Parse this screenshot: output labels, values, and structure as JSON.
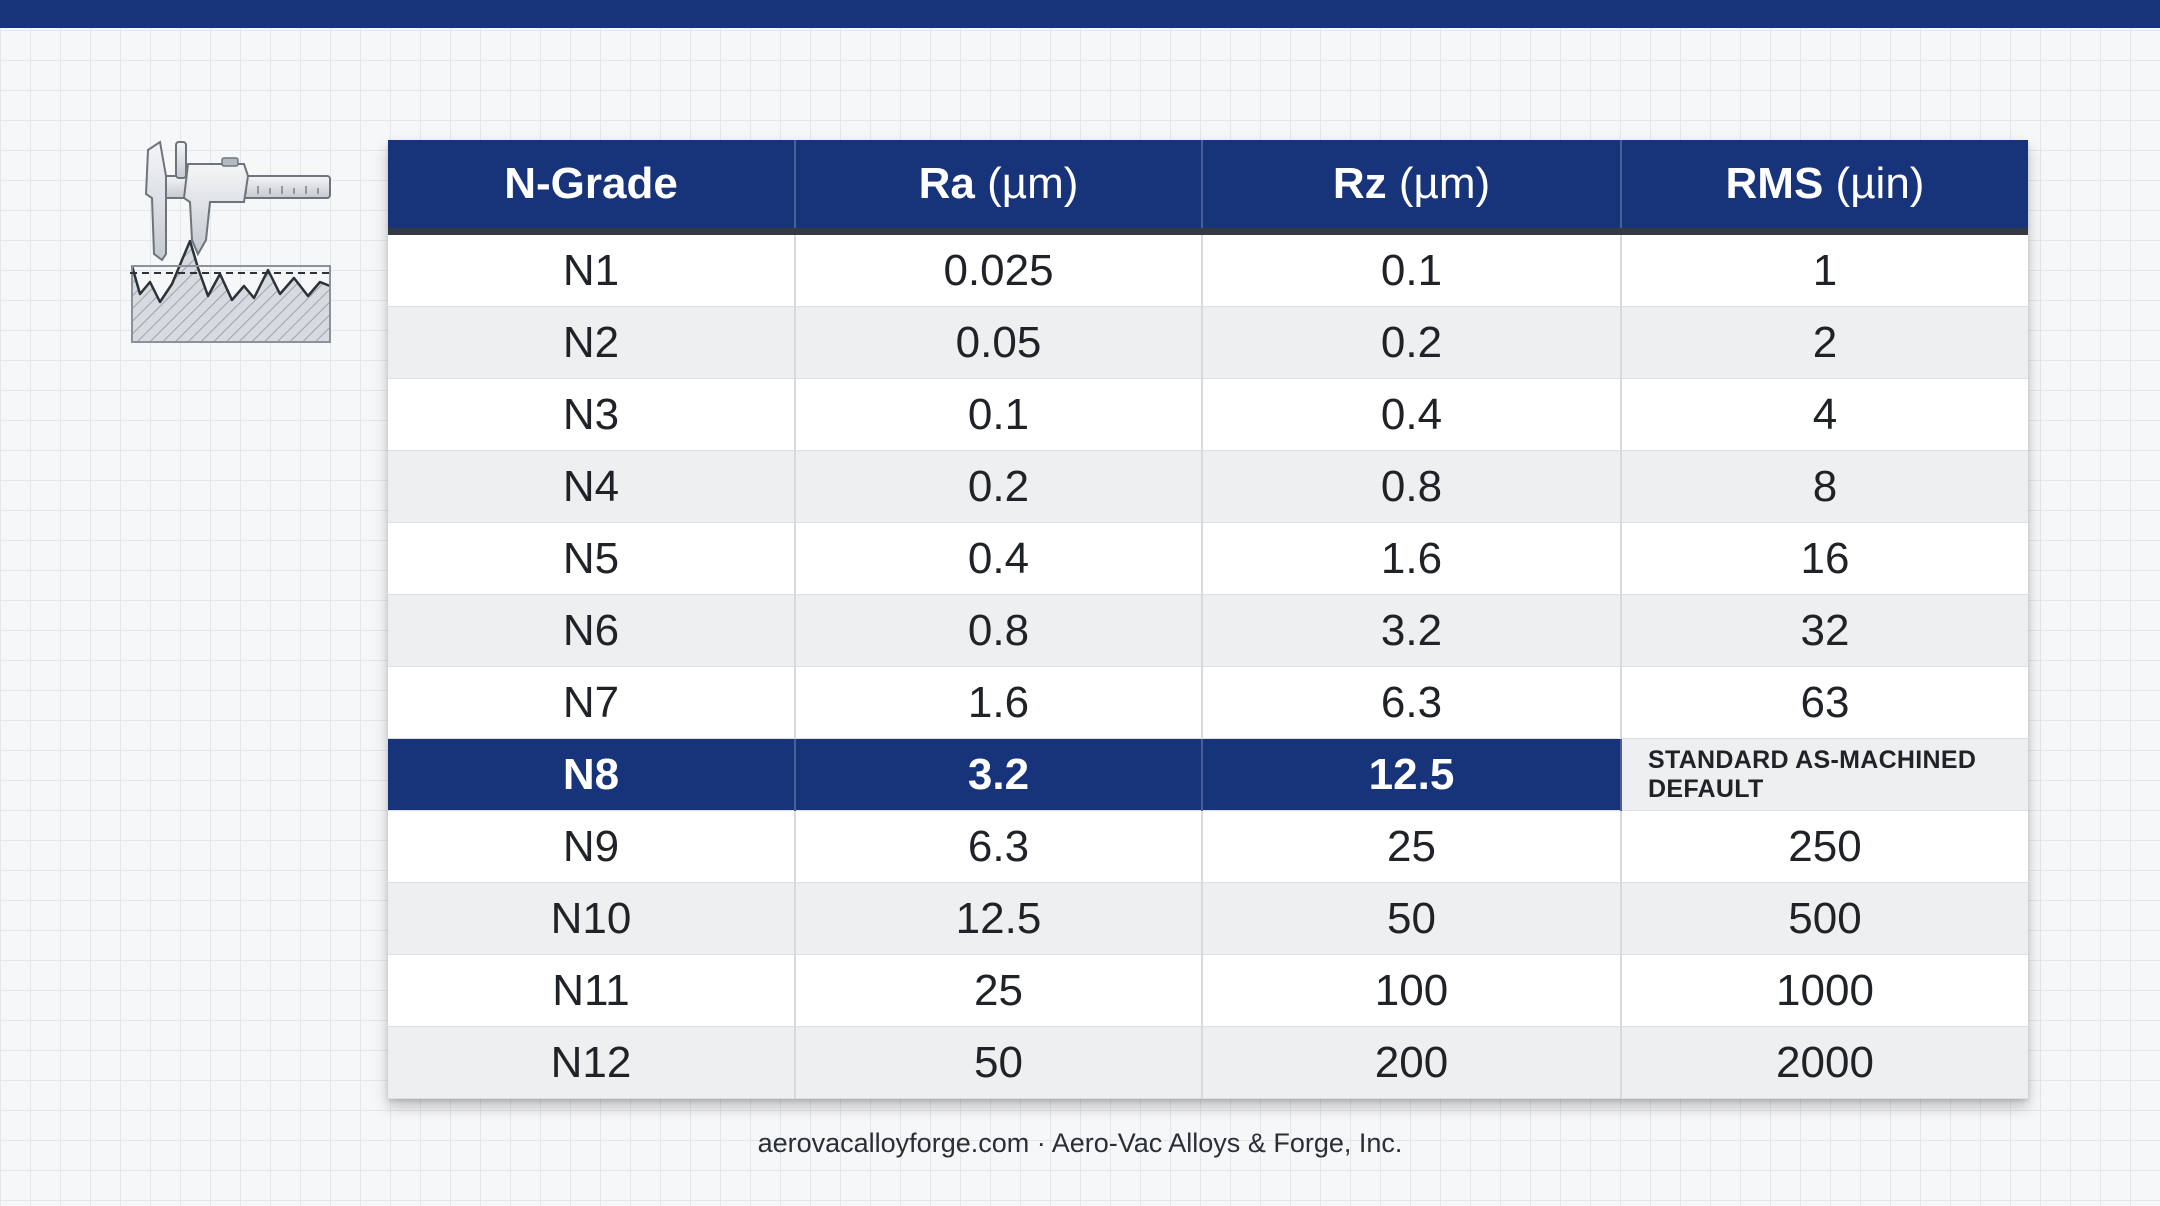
{
  "table": {
    "headers": [
      {
        "bold": "N-Grade",
        "unit": ""
      },
      {
        "bold": "Ra",
        "unit": " (µm)"
      },
      {
        "bold": "Rz",
        "unit": " (µm)"
      },
      {
        "bold": "RMS",
        "unit": " (µin)"
      }
    ],
    "rows": [
      [
        "N1",
        "0.025",
        "0.1",
        "1"
      ],
      [
        "N2",
        "0.05",
        "0.2",
        "2"
      ],
      [
        "N3",
        "0.1",
        "0.4",
        "4"
      ],
      [
        "N4",
        "0.2",
        "0.8",
        "8"
      ],
      [
        "N5",
        "0.4",
        "1.6",
        "16"
      ],
      [
        "N6",
        "0.8",
        "3.2",
        "32"
      ],
      [
        "N7",
        "1.6",
        "6.3",
        "63"
      ],
      [
        "N8",
        "3.2",
        "12.5",
        "STANDARD AS-MACHINED DEFAULT"
      ],
      [
        "N9",
        "6.3",
        "25",
        "250"
      ],
      [
        "N10",
        "12.5",
        "50",
        "500"
      ],
      [
        "N11",
        "25",
        "100",
        "1000"
      ],
      [
        "N12",
        "50",
        "200",
        "2000"
      ]
    ],
    "highlight_row": 7
  },
  "footer": {
    "text": "aerovacalloyforge.com · Aero-Vac Alloys & Forge, Inc."
  },
  "colors": {
    "navy": "#17337a",
    "row_alt": "#eeeff1"
  },
  "icons": {
    "illustration": "caliper-surface-profile-icon"
  }
}
